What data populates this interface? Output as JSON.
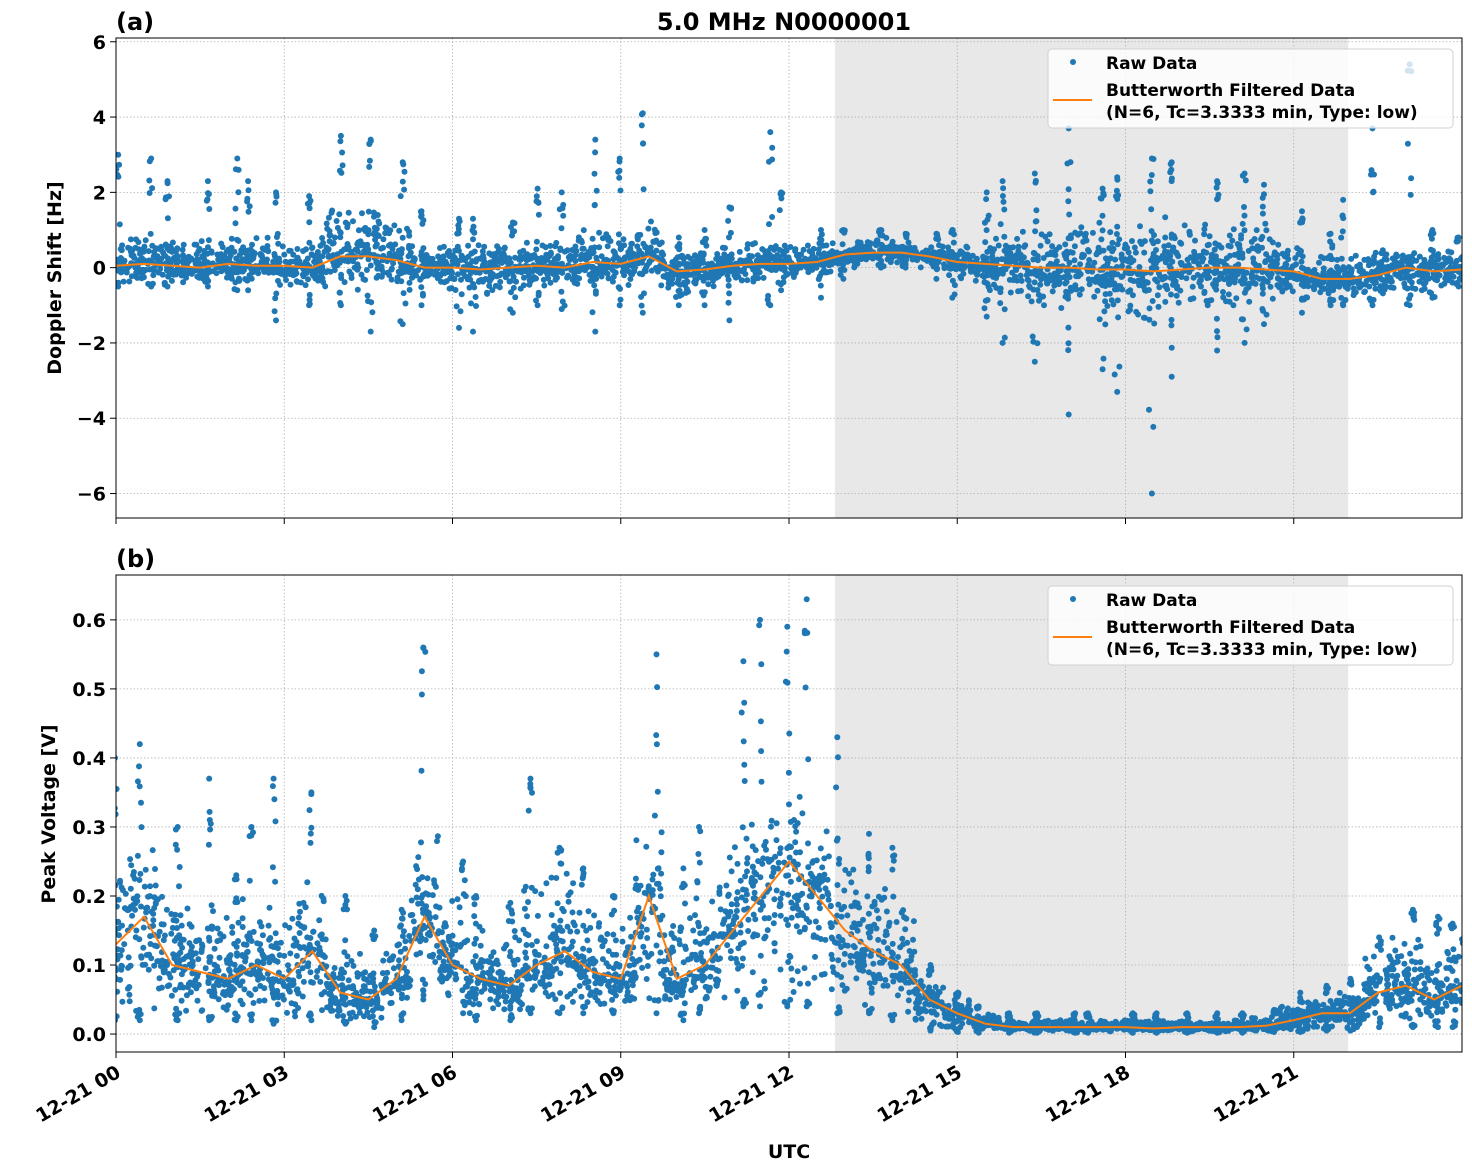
{
  "chart_data": [
    {
      "type": "scatter",
      "panel_label": "(a)",
      "title": "5.0 MHz N0000001",
      "xlabel": "",
      "ylabel": "Doppler Shift [Hz]",
      "xlim_hours": [
        0,
        24
      ],
      "ylim": [
        -6.65,
        6.1
      ],
      "yticks": [
        -6,
        -4,
        -2,
        0,
        2,
        4,
        6
      ],
      "ytick_labels": [
        "−6",
        "−4",
        "−2",
        "0",
        "2",
        "4",
        "6"
      ],
      "grid": true,
      "shaded_interval_hours": [
        12.82,
        21.97
      ],
      "legend": {
        "placement": "top-right",
        "entries": [
          "Raw Data",
          "Butterworth Filtered Data",
          "(N=6, Tc=3.3333 min, Type: low)"
        ]
      },
      "colors": {
        "raw": "#1f77b4",
        "filtered": "#ff7f0e",
        "shade": "#e8e8e8"
      },
      "series": {
        "x_hours": [
          0,
          0.5,
          1,
          1.5,
          2,
          2.5,
          3,
          3.5,
          4,
          4.5,
          5,
          5.5,
          6,
          6.5,
          7,
          7.5,
          8,
          8.5,
          9,
          9.5,
          10,
          10.5,
          11,
          11.5,
          12,
          12.5,
          13,
          13.5,
          14,
          14.5,
          15,
          15.5,
          16,
          16.5,
          17,
          17.5,
          18,
          18.5,
          19,
          19.5,
          20,
          20.5,
          21,
          21.5,
          22,
          22.5,
          23,
          23.5,
          24
        ],
        "filtered": [
          0.05,
          0.1,
          0.05,
          0,
          0.1,
          0.05,
          0.05,
          0,
          0.3,
          0.3,
          0.2,
          0,
          0,
          -0.05,
          0,
          0.05,
          0,
          0.15,
          0.1,
          0.3,
          -0.1,
          -0.05,
          0.05,
          0.1,
          0.1,
          0.15,
          0.35,
          0.4,
          0.4,
          0.3,
          0.15,
          0.1,
          0.05,
          0,
          0,
          -0.05,
          -0.05,
          -0.1,
          -0.05,
          0,
          0,
          -0.05,
          -0.1,
          -0.3,
          -0.3,
          -0.2,
          0,
          -0.1,
          -0.05
        ],
        "raw_low": [
          -0.4,
          -0.4,
          -0.4,
          -0.3,
          -0.3,
          -0.3,
          -0.5,
          -0.5,
          -0.5,
          -0.8,
          -0.6,
          -0.5,
          -0.6,
          -0.7,
          -0.6,
          -0.5,
          -0.5,
          -0.6,
          -0.5,
          -0.5,
          -0.7,
          -0.5,
          -0.4,
          -0.4,
          -0.3,
          -0.2,
          0,
          0.1,
          0.1,
          0,
          -0.3,
          -0.6,
          -0.9,
          -1.0,
          -1.1,
          -1.2,
          -1.3,
          -1.4,
          -1.3,
          -1.1,
          -1.0,
          -0.9,
          -0.8,
          -0.8,
          -0.8,
          -0.8,
          -0.6,
          -0.6,
          -0.4
        ],
        "raw_high": [
          0.6,
          0.8,
          0.8,
          0.8,
          0.8,
          0.8,
          0.7,
          0.8,
          1.6,
          1.5,
          1.2,
          0.6,
          0.6,
          0.6,
          0.6,
          0.7,
          0.8,
          1.1,
          1.0,
          1.3,
          0.4,
          0.4,
          0.6,
          0.7,
          0.6,
          0.6,
          0.7,
          0.8,
          0.7,
          0.6,
          0.6,
          0.8,
          1.0,
          1.0,
          1.2,
          1.2,
          1.2,
          1.4,
          1.3,
          1.2,
          1.1,
          1.0,
          0.6,
          0.3,
          0.4,
          0.6,
          0.6,
          0.5,
          0.5
        ],
        "raw_max": [
          3.0,
          2.9,
          2.3,
          2.3,
          2.9,
          2.3,
          2.0,
          1.9,
          3.5,
          3.4,
          2.8,
          1.5,
          1.3,
          1.3,
          1.2,
          2.1,
          2.0,
          3.4,
          2.9,
          4.1,
          0.8,
          1.0,
          1.6,
          3.6,
          2.0,
          1.0,
          1.0,
          1.0,
          0.9,
          0.9,
          1.0,
          2.0,
          2.3,
          2.5,
          3.7,
          2.1,
          2.4,
          2.9,
          2.8,
          2.3,
          2.5,
          2.2,
          1.5,
          0.9,
          1.8,
          3.7,
          5.4,
          1.0,
          0.8
        ],
        "raw_min": [
          -0.5,
          -0.5,
          -0.5,
          -0.5,
          -0.6,
          -0.6,
          -1.4,
          -1.0,
          -1.0,
          -1.7,
          -1.5,
          -1.0,
          -1.6,
          -1.7,
          -1.2,
          -1.0,
          -1.1,
          -1.7,
          -1.0,
          -1.2,
          -1.0,
          -1.0,
          -1.4,
          -1.0,
          -0.6,
          -0.8,
          -0.3,
          0,
          0,
          -0.3,
          -0.8,
          -1.3,
          -2.0,
          -2.5,
          -3.9,
          -2.7,
          -3.3,
          -6.0,
          -2.9,
          -2.2,
          -2.0,
          -1.5,
          -1.2,
          -1.0,
          -1.0,
          -1.0,
          -1.0,
          -0.8,
          -0.5
        ]
      }
    },
    {
      "type": "scatter",
      "panel_label": "(b)",
      "xlabel": "UTC",
      "ylabel": "Peak Voltage [V]",
      "xlim_hours": [
        0,
        24
      ],
      "ylim": [
        -0.026,
        0.665
      ],
      "yticks": [
        0,
        0.1,
        0.2,
        0.3,
        0.4,
        0.5,
        0.6
      ],
      "ytick_labels": [
        "0.0",
        "0.1",
        "0.2",
        "0.3",
        "0.4",
        "0.5",
        "0.6"
      ],
      "xticks_hours": [
        0,
        3,
        6,
        9,
        12,
        15,
        18,
        21
      ],
      "xtick_labels": [
        "12-21 00",
        "12-21 03",
        "12-21 06",
        "12-21 09",
        "12-21 12",
        "12-21 15",
        "12-21 18",
        "12-21 21"
      ],
      "grid": true,
      "shaded_interval_hours": [
        12.82,
        21.97
      ],
      "legend": {
        "placement": "top-right",
        "entries": [
          "Raw Data",
          "Butterworth Filtered Data",
          "(N=6, Tc=3.3333 min, Type: low)"
        ]
      },
      "colors": {
        "raw": "#1f77b4",
        "filtered": "#ff7f0e",
        "shade": "#e8e8e8"
      },
      "series": {
        "x_hours": [
          0,
          0.5,
          1,
          1.5,
          2,
          2.5,
          3,
          3.5,
          4,
          4.5,
          5,
          5.5,
          6,
          6.5,
          7,
          7.5,
          8,
          8.5,
          9,
          9.5,
          10,
          10.5,
          11,
          11.5,
          12,
          12.5,
          13,
          13.5,
          14,
          14.5,
          15,
          15.5,
          16,
          16.5,
          17,
          17.5,
          18,
          18.5,
          19,
          19.5,
          20,
          20.5,
          21,
          21.5,
          22,
          22.5,
          23,
          23.5,
          24
        ],
        "filtered": [
          0.13,
          0.17,
          0.1,
          0.09,
          0.08,
          0.1,
          0.08,
          0.12,
          0.06,
          0.05,
          0.08,
          0.17,
          0.1,
          0.08,
          0.07,
          0.1,
          0.12,
          0.09,
          0.08,
          0.2,
          0.08,
          0.1,
          0.15,
          0.2,
          0.25,
          0.2,
          0.15,
          0.12,
          0.1,
          0.05,
          0.03,
          0.015,
          0.01,
          0.01,
          0.01,
          0.01,
          0.01,
          0.008,
          0.01,
          0.01,
          0.01,
          0.012,
          0.02,
          0.03,
          0.03,
          0.06,
          0.07,
          0.05,
          0.07
        ],
        "raw_low": [
          0.03,
          0.03,
          0.03,
          0.03,
          0.03,
          0.03,
          0.02,
          0.03,
          0.02,
          0.02,
          0.03,
          0.07,
          0.05,
          0.03,
          0.03,
          0.04,
          0.04,
          0.04,
          0.04,
          0.05,
          0.03,
          0.04,
          0.05,
          0.06,
          0.06,
          0.05,
          0.04,
          0.04,
          0.03,
          0.01,
          0.01,
          0.005,
          0.005,
          0.004,
          0.004,
          0.004,
          0.004,
          0.003,
          0.004,
          0.004,
          0.004,
          0.005,
          0.005,
          0.01,
          0.01,
          0.02,
          0.02,
          0.02,
          0.02
        ],
        "raw_high": [
          0.25,
          0.28,
          0.2,
          0.2,
          0.18,
          0.2,
          0.18,
          0.22,
          0.12,
          0.12,
          0.15,
          0.3,
          0.2,
          0.16,
          0.15,
          0.22,
          0.24,
          0.18,
          0.17,
          0.3,
          0.17,
          0.2,
          0.3,
          0.32,
          0.35,
          0.3,
          0.25,
          0.22,
          0.18,
          0.08,
          0.05,
          0.03,
          0.02,
          0.02,
          0.02,
          0.02,
          0.02,
          0.02,
          0.02,
          0.02,
          0.02,
          0.025,
          0.04,
          0.05,
          0.06,
          0.12,
          0.14,
          0.13,
          0.15
        ],
        "raw_max": [
          0.4,
          0.42,
          0.3,
          0.37,
          0.23,
          0.3,
          0.37,
          0.35,
          0.2,
          0.15,
          0.18,
          0.56,
          0.25,
          0.2,
          0.19,
          0.37,
          0.27,
          0.24,
          0.2,
          0.55,
          0.24,
          0.3,
          0.54,
          0.6,
          0.59,
          0.63,
          0.43,
          0.29,
          0.27,
          0.1,
          0.06,
          0.04,
          0.03,
          0.03,
          0.03,
          0.03,
          0.03,
          0.03,
          0.03,
          0.03,
          0.03,
          0.035,
          0.06,
          0.07,
          0.08,
          0.14,
          0.18,
          0.17,
          0.16
        ],
        "raw_min": [
          0.02,
          0.02,
          0.02,
          0.02,
          0.02,
          0.02,
          0.015,
          0.02,
          0.015,
          0.01,
          0.02,
          0.05,
          0.03,
          0.02,
          0.02,
          0.03,
          0.03,
          0.03,
          0.03,
          0.03,
          0.02,
          0.03,
          0.04,
          0.04,
          0.04,
          0.04,
          0.03,
          0.03,
          0.02,
          0.005,
          0.003,
          0.002,
          0.002,
          0.002,
          0.002,
          0.002,
          0.002,
          0.002,
          0.002,
          0.002,
          0.002,
          0.003,
          0.003,
          0.005,
          0.005,
          0.01,
          0.01,
          0.01,
          0.01
        ]
      }
    }
  ]
}
